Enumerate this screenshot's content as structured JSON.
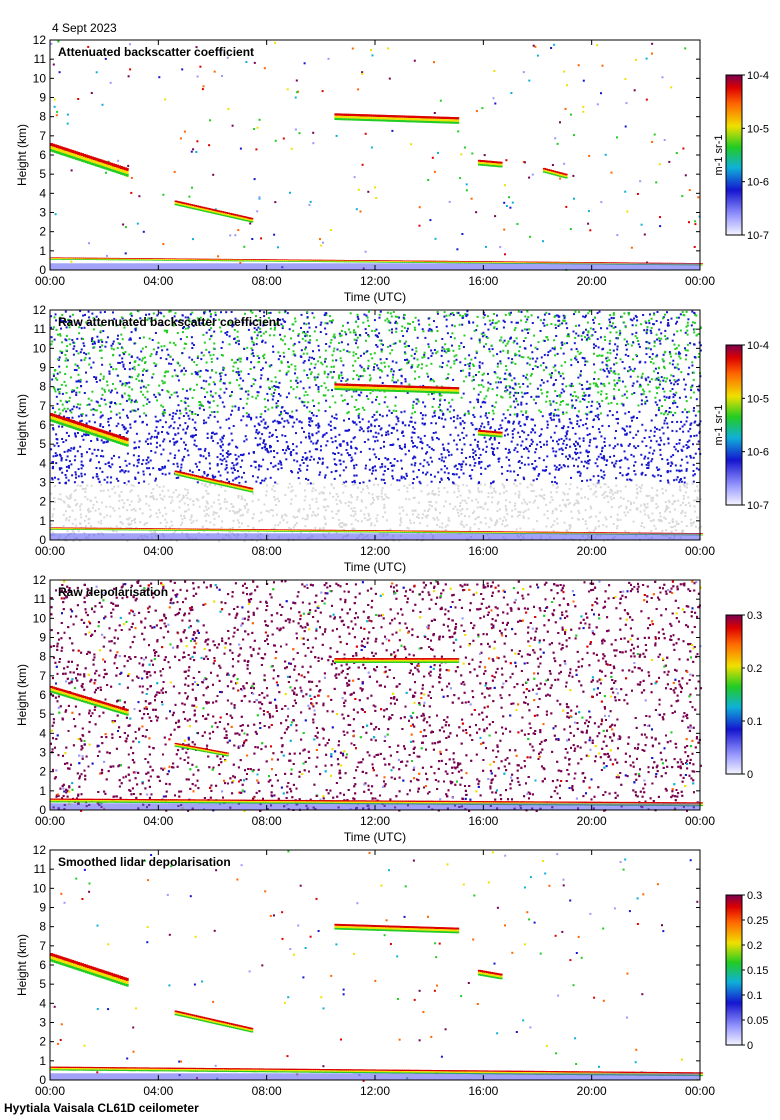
{
  "date_label": "4 Sept 2023",
  "footer_label": "Hyytiala Vaisala CL61D ceilometer",
  "chart_data": [
    {
      "type": "heatmap",
      "title": "Attenuated backscatter coefficient",
      "xlabel": "Time (UTC)",
      "ylabel": "Height (km)",
      "xlim": [
        0,
        24
      ],
      "ylim": [
        0,
        12
      ],
      "x_ticks": [
        "00:00",
        "04:00",
        "08:00",
        "12:00",
        "16:00",
        "20:00",
        "00:00"
      ],
      "y_ticks": [
        "0",
        "1",
        "2",
        "3",
        "4",
        "5",
        "6",
        "7",
        "8",
        "9",
        "10",
        "11",
        "12"
      ],
      "colorbar": {
        "scale": "log",
        "labels": [
          "10-7",
          "10-6",
          "10-5",
          "10-4"
        ],
        "label": "m-1 sr-1"
      },
      "noise_density": 0.03,
      "features": [
        {
          "x0": 0.0,
          "x1": 2.8,
          "y0": 6.4,
          "y1": 5.1,
          "thickness": 0.45
        },
        {
          "x0": 4.6,
          "x1": 7.4,
          "y0": 3.5,
          "y1": 2.6,
          "thickness": 0.25
        },
        {
          "x0": 10.5,
          "x1": 15.0,
          "y0": 8.0,
          "y1": 7.8,
          "thickness": 0.35
        },
        {
          "x0": 15.8,
          "x1": 16.6,
          "y0": 5.6,
          "y1": 5.5,
          "thickness": 0.3
        },
        {
          "x0": 18.2,
          "x1": 19.0,
          "y0": 5.2,
          "y1": 4.9,
          "thickness": 0.25
        },
        {
          "x0": 0.0,
          "x1": 24.0,
          "y0": 0.6,
          "y1": 0.3,
          "thickness": 0.12
        }
      ]
    },
    {
      "type": "heatmap",
      "title": "Raw attenuated backscatter coefficient",
      "xlabel": "Time (UTC)",
      "ylabel": "Height (km)",
      "xlim": [
        0,
        24
      ],
      "ylim": [
        0,
        12
      ],
      "x_ticks": [
        "00:00",
        "04:00",
        "08:00",
        "12:00",
        "16:00",
        "20:00",
        "00:00"
      ],
      "y_ticks": [
        "0",
        "1",
        "2",
        "3",
        "4",
        "5",
        "6",
        "7",
        "8",
        "9",
        "10",
        "11",
        "12"
      ],
      "colorbar": {
        "scale": "log",
        "labels": [
          "10-7",
          "10-6",
          "10-5",
          "10-4"
        ],
        "label": "m-1 sr-1"
      },
      "noise_density": 0.6,
      "features": [
        {
          "x0": 0.0,
          "x1": 2.8,
          "y0": 6.4,
          "y1": 5.1,
          "thickness": 0.45
        },
        {
          "x0": 4.6,
          "x1": 7.4,
          "y0": 3.5,
          "y1": 2.6,
          "thickness": 0.25
        },
        {
          "x0": 10.5,
          "x1": 15.0,
          "y0": 8.0,
          "y1": 7.8,
          "thickness": 0.35
        },
        {
          "x0": 15.8,
          "x1": 16.6,
          "y0": 5.6,
          "y1": 5.5,
          "thickness": 0.3
        },
        {
          "x0": 0.0,
          "x1": 24.0,
          "y0": 0.6,
          "y1": 0.3,
          "thickness": 0.12
        }
      ]
    },
    {
      "type": "heatmap",
      "title": "Raw depolarisation",
      "xlabel": "Time (UTC)",
      "ylabel": "Height (km)",
      "xlim": [
        0,
        24
      ],
      "ylim": [
        0,
        12
      ],
      "x_ticks": [
        "00:00",
        "04:00",
        "08:00",
        "12:00",
        "16:00",
        "20:00",
        "00:00"
      ],
      "y_ticks": [
        "0",
        "1",
        "2",
        "3",
        "4",
        "5",
        "6",
        "7",
        "8",
        "9",
        "10",
        "11",
        "12"
      ],
      "colorbar": {
        "scale": "linear",
        "range": [
          0,
          0.3
        ],
        "labels": [
          "0",
          "0.1",
          "0.2",
          "0.3"
        ]
      },
      "noise_density": 0.75,
      "features": [
        {
          "x0": 0.0,
          "x1": 2.8,
          "y0": 6.3,
          "y1": 5.1,
          "thickness": 0.35
        },
        {
          "x0": 4.6,
          "x1": 6.5,
          "y0": 3.4,
          "y1": 2.9,
          "thickness": 0.2
        },
        {
          "x0": 10.5,
          "x1": 15.0,
          "y0": 7.8,
          "y1": 7.8,
          "thickness": 0.25
        },
        {
          "x0": 0.0,
          "x1": 24.0,
          "y0": 0.5,
          "y1": 0.3,
          "thickness": 0.2
        }
      ]
    },
    {
      "type": "heatmap",
      "title": "Smoothed lidar depolarisation",
      "xlabel": "Time (UTC)",
      "ylabel": "Height (km)",
      "xlim": [
        0,
        24
      ],
      "ylim": [
        0,
        12
      ],
      "x_ticks": [
        "00:00",
        "04:00",
        "08:00",
        "12:00",
        "16:00",
        "20:00",
        "00:00"
      ],
      "y_ticks": [
        "0",
        "1",
        "2",
        "3",
        "4",
        "5",
        "6",
        "7",
        "8",
        "9",
        "10",
        "11",
        "12"
      ],
      "colorbar": {
        "scale": "linear",
        "range": [
          0,
          0.3
        ],
        "labels": [
          "0",
          "0.05",
          "0.1",
          "0.15",
          "0.2",
          "0.25",
          "0.3"
        ]
      },
      "noise_density": 0.02,
      "features": [
        {
          "x0": 0.0,
          "x1": 2.8,
          "y0": 6.4,
          "y1": 5.1,
          "thickness": 0.45
        },
        {
          "x0": 4.6,
          "x1": 7.4,
          "y0": 3.5,
          "y1": 2.6,
          "thickness": 0.25
        },
        {
          "x0": 10.5,
          "x1": 15.0,
          "y0": 8.0,
          "y1": 7.8,
          "thickness": 0.3
        },
        {
          "x0": 15.8,
          "x1": 16.6,
          "y0": 5.6,
          "y1": 5.4,
          "thickness": 0.3
        },
        {
          "x0": 0.0,
          "x1": 24.0,
          "y0": 0.6,
          "y1": 0.3,
          "thickness": 0.2
        }
      ]
    }
  ]
}
